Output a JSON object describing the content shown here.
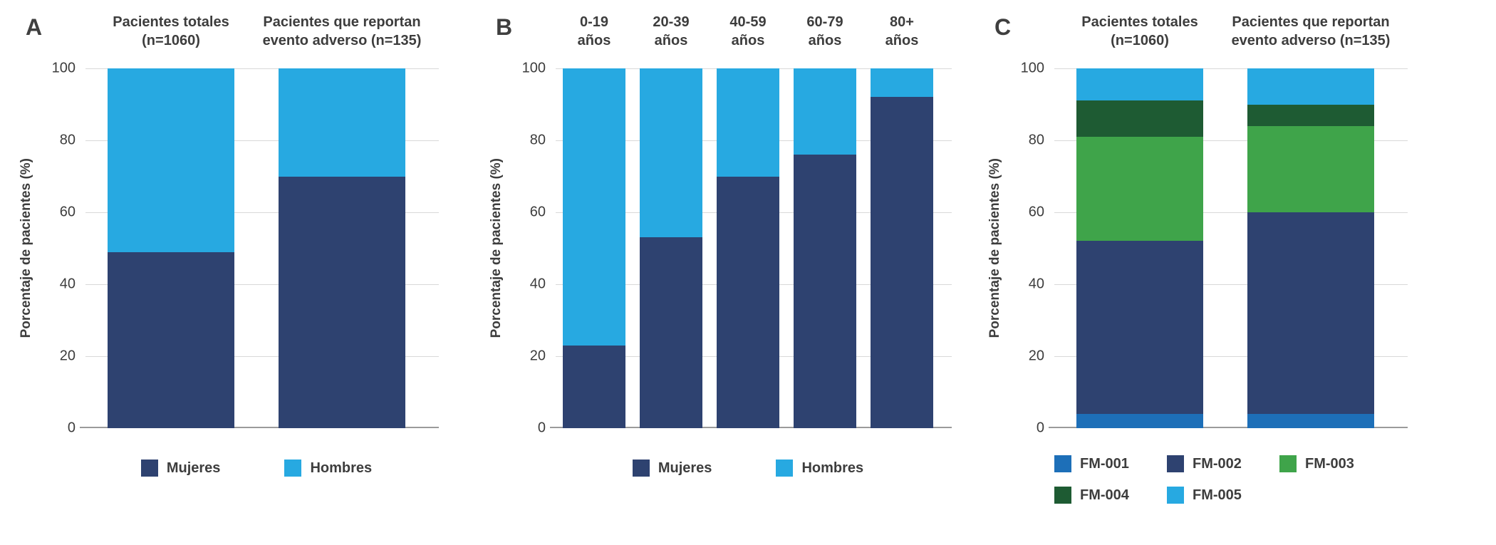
{
  "panels": [
    {
      "letter": "A"
    },
    {
      "letter": "B"
    },
    {
      "letter": "C"
    }
  ],
  "chart_data": [
    {
      "type": "bar",
      "subtype": "stacked-percent",
      "categories": [
        [
          "Pacientes totales",
          "(n=1060)"
        ],
        [
          "Pacientes que reportan",
          "evento adverso (n=135)"
        ]
      ],
      "ylabel": "Porcentaje de pacientes (%)",
      "ylim": [
        0,
        100
      ],
      "yticks": [
        0,
        20,
        40,
        60,
        80,
        100
      ],
      "grid": true,
      "legend_position": "bottom",
      "series": [
        {
          "name": "Mujeres",
          "color": "#2e4270",
          "values": [
            49,
            70
          ]
        },
        {
          "name": "Hombres",
          "color": "#27a9e1",
          "values": [
            51,
            30
          ]
        }
      ]
    },
    {
      "type": "bar",
      "subtype": "stacked-percent",
      "categories": [
        [
          "0-19",
          "años"
        ],
        [
          "20-39",
          "años"
        ],
        [
          "40-59",
          "años"
        ],
        [
          "60-79",
          "años"
        ],
        [
          "80+",
          "años"
        ]
      ],
      "ylabel": "Porcentaje de pacientes (%)",
      "ylim": [
        0,
        100
      ],
      "yticks": [
        0,
        20,
        40,
        60,
        80,
        100
      ],
      "grid": true,
      "legend_position": "bottom",
      "series": [
        {
          "name": "Mujeres",
          "color": "#2e4270",
          "values": [
            23,
            53,
            70,
            76,
            92
          ]
        },
        {
          "name": "Hombres",
          "color": "#27a9e1",
          "values": [
            77,
            47,
            30,
            24,
            8
          ]
        }
      ]
    },
    {
      "type": "bar",
      "subtype": "stacked-percent",
      "categories": [
        [
          "Pacientes totales",
          "(n=1060)"
        ],
        [
          "Pacientes que reportan",
          "evento adverso (n=135)"
        ]
      ],
      "ylabel": "Porcentaje de pacientes (%)",
      "ylim": [
        0,
        100
      ],
      "yticks": [
        0,
        20,
        40,
        60,
        80,
        100
      ],
      "grid": true,
      "legend_position": "bottom",
      "series": [
        {
          "name": "FM-001",
          "color": "#1d6fb8",
          "values": [
            4,
            4
          ]
        },
        {
          "name": "FM-002",
          "color": "#2e4270",
          "values": [
            48,
            56
          ]
        },
        {
          "name": "FM-003",
          "color": "#3fa44a",
          "values": [
            29,
            24
          ]
        },
        {
          "name": "FM-004",
          "color": "#1e5b33",
          "values": [
            10,
            6
          ]
        },
        {
          "name": "FM-005",
          "color": "#27a9e1",
          "values": [
            9,
            10
          ]
        }
      ]
    }
  ]
}
